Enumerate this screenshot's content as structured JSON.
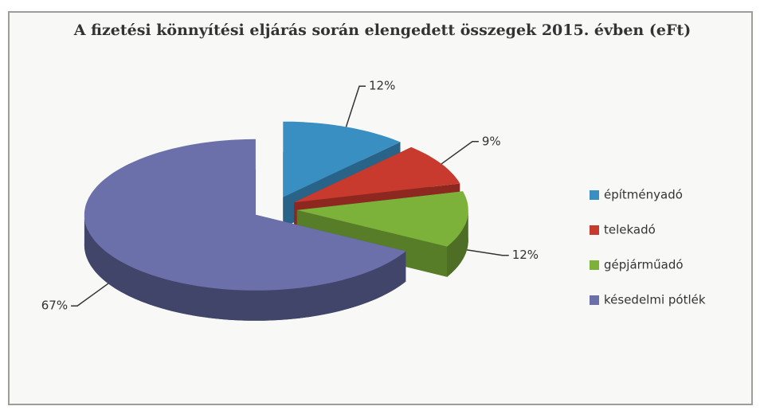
{
  "chart_data": {
    "type": "pie",
    "title": "A fizetési könnyítési eljárás során elengedett összegek 2015. évben (eFt)",
    "categories": [
      "építményadó",
      "telekadó",
      "gépjárműadó",
      "késedelmi pótlék"
    ],
    "values": [
      12,
      9,
      12,
      67
    ],
    "value_labels": [
      "12%",
      "9%",
      "12%",
      "67%"
    ],
    "colors": [
      "#3a8fc2",
      "#c8392e",
      "#7cb23a",
      "#6b70ab"
    ],
    "legend": "right"
  }
}
